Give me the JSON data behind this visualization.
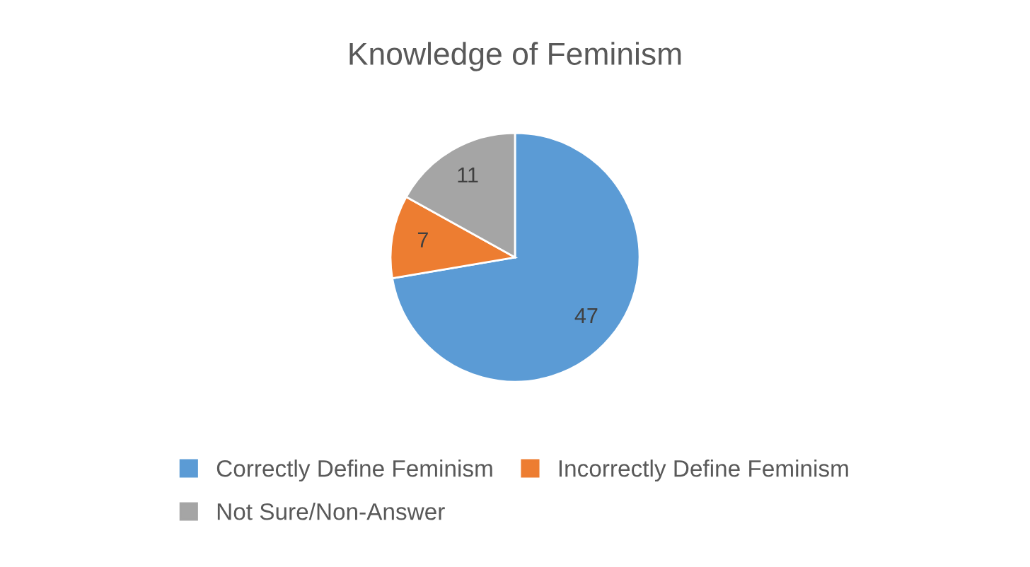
{
  "chart_data": {
    "type": "pie",
    "title": "Knowledge of Feminism",
    "categories": [
      "Correctly Define Feminism",
      "Incorrectly Define Feminism",
      "Not Sure/Non-Answer"
    ],
    "values": [
      47,
      7,
      11
    ],
    "colors": [
      "#5b9bd5",
      "#ed7d31",
      "#a5a5a5"
    ],
    "data_labels": true,
    "legend": "bottom"
  }
}
